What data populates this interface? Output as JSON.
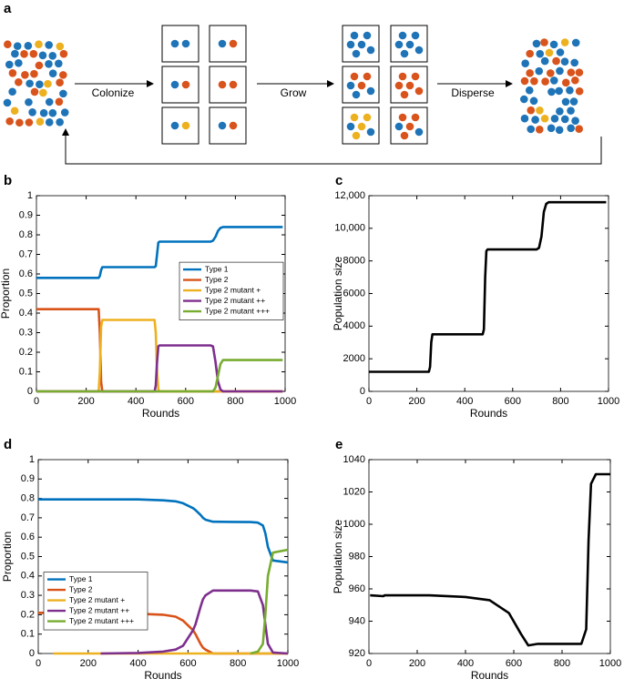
{
  "diagram": {
    "panel_label": "a",
    "steps": [
      "Colonize",
      "Grow",
      "Disperse"
    ]
  },
  "chart_data": [
    {
      "type": "line",
      "panel_label": "b",
      "xlabel": "Rounds",
      "ylabel": "Proportion",
      "xlim": [
        0,
        1000
      ],
      "xticks": [
        0,
        200,
        400,
        600,
        800,
        1000
      ],
      "ylim": [
        0,
        1
      ],
      "yticks": [
        0,
        0.1,
        0.2,
        0.3,
        0.4,
        0.5,
        0.6,
        0.7,
        0.8,
        0.9,
        1
      ],
      "legend": "right",
      "x": [
        0,
        250,
        255,
        260,
        265,
        270,
        475,
        480,
        485,
        490,
        495,
        700,
        710,
        720,
        730,
        740,
        750,
        990
      ],
      "series": [
        {
          "name": "Type 1",
          "color": "#0072bd",
          "values": [
            0.58,
            0.58,
            0.59,
            0.62,
            0.635,
            0.635,
            0.635,
            0.64,
            0.7,
            0.76,
            0.765,
            0.765,
            0.77,
            0.79,
            0.82,
            0.835,
            0.84,
            0.84
          ]
        },
        {
          "name": "Type 2",
          "color": "#d95319",
          "values": [
            0.42,
            0.42,
            0.3,
            0.05,
            0,
            0,
            0,
            0,
            0,
            0,
            0,
            0,
            0,
            0,
            0,
            0,
            0,
            0
          ]
        },
        {
          "name": "Type 2 mutant +",
          "color": "#edb120",
          "values": [
            0,
            0,
            0.1,
            0.33,
            0.365,
            0.365,
            0.365,
            0.3,
            0.1,
            0.01,
            0,
            0,
            0,
            0,
            0,
            0,
            0,
            0
          ]
        },
        {
          "name": "Type 2 mutant ++",
          "color": "#7e2f8e",
          "values": [
            0,
            0,
            0,
            0,
            0,
            0,
            0,
            0.03,
            0.15,
            0.23,
            0.235,
            0.235,
            0.23,
            0.15,
            0.05,
            0.01,
            0,
            0
          ]
        },
        {
          "name": "Type 2 mutant +++",
          "color": "#77ac30",
          "values": [
            0,
            0,
            0,
            0,
            0,
            0,
            0,
            0,
            0,
            0,
            0,
            0,
            0,
            0.02,
            0.08,
            0.14,
            0.16,
            0.16
          ]
        }
      ]
    },
    {
      "type": "line",
      "panel_label": "c",
      "xlabel": "Rounds",
      "ylabel": "Population size",
      "xlim": [
        0,
        1000
      ],
      "xticks": [
        0,
        200,
        400,
        600,
        800,
        1000
      ],
      "ylim": [
        0,
        12000
      ],
      "yticks": [
        0,
        2000,
        4000,
        6000,
        8000,
        {
          "value": 10000,
          "label": "10,000"
        },
        {
          "value": 12000,
          "label": "12,000"
        }
      ],
      "x": [
        0,
        250,
        255,
        260,
        265,
        270,
        475,
        480,
        485,
        490,
        495,
        700,
        710,
        720,
        730,
        740,
        750,
        990
      ],
      "series": [
        {
          "color": "#000000",
          "values": [
            1200,
            1200,
            1500,
            3000,
            3500,
            3500,
            3500,
            3800,
            7000,
            8600,
            8700,
            8700,
            8800,
            9500,
            11000,
            11500,
            11600,
            11600
          ]
        }
      ]
    },
    {
      "type": "line",
      "panel_label": "d",
      "xlabel": "Rounds",
      "ylabel": "Proportion",
      "xlim": [
        0,
        1000
      ],
      "xticks": [
        0,
        200,
        400,
        600,
        800,
        1000
      ],
      "ylim": [
        0,
        1
      ],
      "yticks": [
        0,
        0.1,
        0.2,
        0.3,
        0.4,
        0.5,
        0.6,
        0.7,
        0.8,
        0.9,
        1
      ],
      "legend": "left",
      "x": [
        0,
        60,
        250,
        400,
        500,
        550,
        580,
        620,
        630,
        650,
        660,
        670,
        700,
        850,
        880,
        900,
        910,
        920,
        940,
        1000
      ],
      "series": [
        {
          "name": "Type 1",
          "color": "#0072bd",
          "values": [
            0.795,
            0.795,
            0.795,
            0.795,
            0.79,
            0.785,
            0.775,
            0.75,
            0.74,
            0.715,
            0.7,
            0.69,
            0.68,
            0.678,
            0.675,
            0.66,
            0.62,
            0.55,
            0.48,
            0.47
          ]
        },
        {
          "name": "Type 2",
          "color": "#d95319",
          "values": [
            0.21,
            0.21,
            0.21,
            0.205,
            0.2,
            0.19,
            0.17,
            0.12,
            0.1,
            0.05,
            0.03,
            0.02,
            0,
            0,
            0,
            0,
            0,
            0,
            0,
            0
          ]
        },
        {
          "name": "Type 2 mutant +",
          "color": "#edb120",
          "values": [
            null,
            0,
            0,
            0,
            0,
            0,
            0,
            0,
            0,
            0,
            0,
            0,
            0,
            0,
            0,
            0,
            0,
            0,
            0,
            0
          ]
        },
        {
          "name": "Type 2 mutant ++",
          "color": "#7e2f8e",
          "values": [
            null,
            null,
            0,
            0.003,
            0.01,
            0.02,
            0.04,
            0.12,
            0.15,
            0.24,
            0.28,
            0.3,
            0.325,
            0.325,
            0.32,
            0.25,
            0.15,
            0.05,
            0.005,
            0
          ]
        },
        {
          "name": "Type 2 mutant +++",
          "color": "#77ac30",
          "values": [
            null,
            null,
            null,
            null,
            null,
            null,
            null,
            null,
            null,
            null,
            null,
            null,
            null,
            0,
            0.01,
            0.05,
            0.2,
            0.4,
            0.52,
            0.535
          ]
        }
      ]
    },
    {
      "type": "line",
      "panel_label": "e",
      "xlabel": "Rounds",
      "ylabel": "Population size",
      "xlim": [
        0,
        1000
      ],
      "xticks": [
        0,
        200,
        400,
        600,
        800,
        1000
      ],
      "ylim": [
        920,
        1040
      ],
      "yticks": [
        920,
        940,
        960,
        980,
        1000,
        1020,
        1040
      ],
      "x": [
        5,
        60,
        65,
        250,
        400,
        500,
        580,
        630,
        660,
        700,
        850,
        880,
        900,
        910,
        920,
        940,
        1000
      ],
      "series": [
        {
          "color": "#000000",
          "values": [
            956,
            955.5,
            956,
            956,
            955,
            953,
            945,
            932,
            925,
            926,
            926,
            926,
            935,
            990,
            1025,
            1031,
            1031
          ]
        }
      ]
    }
  ]
}
